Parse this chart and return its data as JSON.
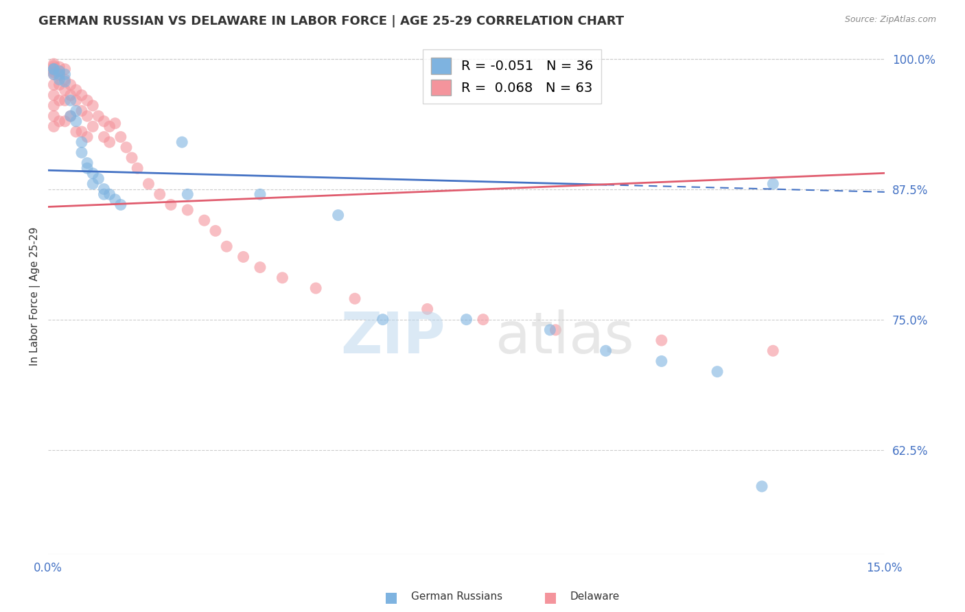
{
  "title": "GERMAN RUSSIAN VS DELAWARE IN LABOR FORCE | AGE 25-29 CORRELATION CHART",
  "source_text": "Source: ZipAtlas.com",
  "ylabel": "In Labor Force | Age 25-29",
  "xlim": [
    0.0,
    0.15
  ],
  "ylim": [
    0.525,
    1.02
  ],
  "ytick_labels_right": [
    "100.0%",
    "87.5%",
    "75.0%",
    "62.5%"
  ],
  "ytick_positions_right": [
    1.0,
    0.875,
    0.75,
    0.625
  ],
  "R_blue": -0.051,
  "N_blue": 36,
  "R_pink": 0.068,
  "N_pink": 63,
  "blue_color": "#7EB3E0",
  "pink_color": "#F4949C",
  "blue_line_color": "#4472C4",
  "pink_line_color": "#E05C6E",
  "background_color": "#FFFFFF",
  "grid_color": "#CCCCCC",
  "blue_scatter_x": [
    0.001,
    0.001,
    0.001,
    0.002,
    0.002,
    0.002,
    0.003,
    0.003,
    0.004,
    0.004,
    0.005,
    0.005,
    0.006,
    0.006,
    0.007,
    0.007,
    0.008,
    0.008,
    0.009,
    0.01,
    0.01,
    0.011,
    0.012,
    0.013,
    0.024,
    0.025,
    0.038,
    0.052,
    0.06,
    0.075,
    0.09,
    0.1,
    0.11,
    0.12,
    0.128,
    0.13
  ],
  "blue_scatter_y": [
    0.99,
    0.99,
    0.985,
    0.988,
    0.985,
    0.98,
    0.985,
    0.978,
    0.96,
    0.945,
    0.95,
    0.94,
    0.92,
    0.91,
    0.9,
    0.895,
    0.89,
    0.88,
    0.885,
    0.875,
    0.87,
    0.87,
    0.865,
    0.86,
    0.92,
    0.87,
    0.87,
    0.85,
    0.75,
    0.75,
    0.74,
    0.72,
    0.71,
    0.7,
    0.59,
    0.88
  ],
  "pink_scatter_x": [
    0.001,
    0.001,
    0.001,
    0.001,
    0.001,
    0.001,
    0.001,
    0.001,
    0.001,
    0.001,
    0.001,
    0.002,
    0.002,
    0.002,
    0.002,
    0.002,
    0.002,
    0.003,
    0.003,
    0.003,
    0.003,
    0.003,
    0.004,
    0.004,
    0.004,
    0.005,
    0.005,
    0.005,
    0.006,
    0.006,
    0.006,
    0.007,
    0.007,
    0.007,
    0.008,
    0.008,
    0.009,
    0.01,
    0.01,
    0.011,
    0.011,
    0.012,
    0.013,
    0.014,
    0.015,
    0.016,
    0.018,
    0.02,
    0.022,
    0.025,
    0.028,
    0.03,
    0.032,
    0.035,
    0.038,
    0.042,
    0.048,
    0.055,
    0.068,
    0.078,
    0.091,
    0.11,
    0.13
  ],
  "pink_scatter_y": [
    0.995,
    0.993,
    0.991,
    0.989,
    0.987,
    0.985,
    0.975,
    0.965,
    0.955,
    0.945,
    0.935,
    0.992,
    0.988,
    0.984,
    0.975,
    0.96,
    0.94,
    0.99,
    0.98,
    0.97,
    0.96,
    0.94,
    0.975,
    0.965,
    0.945,
    0.97,
    0.96,
    0.93,
    0.965,
    0.95,
    0.93,
    0.96,
    0.945,
    0.925,
    0.955,
    0.935,
    0.945,
    0.94,
    0.925,
    0.935,
    0.92,
    0.938,
    0.925,
    0.915,
    0.905,
    0.895,
    0.88,
    0.87,
    0.86,
    0.855,
    0.845,
    0.835,
    0.82,
    0.81,
    0.8,
    0.79,
    0.78,
    0.77,
    0.76,
    0.75,
    0.74,
    0.73,
    0.72
  ]
}
